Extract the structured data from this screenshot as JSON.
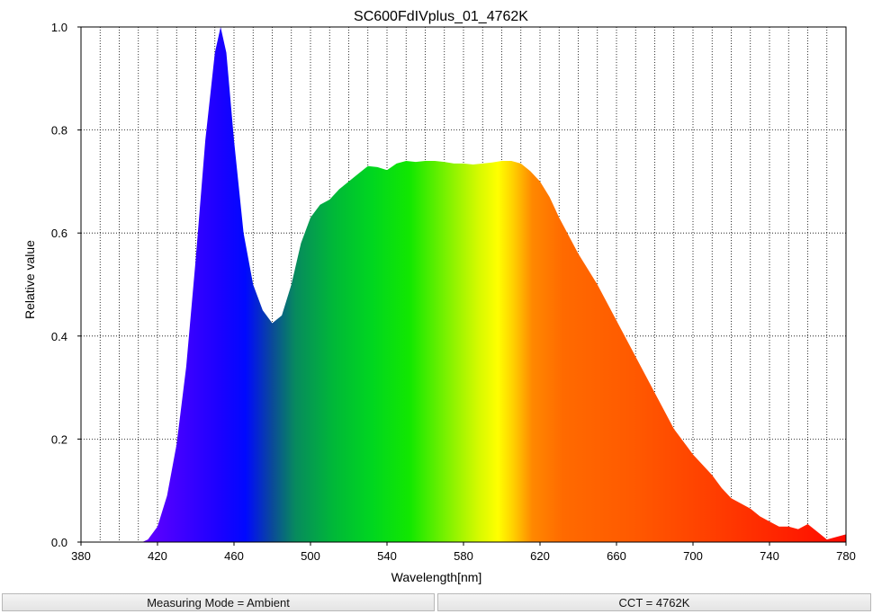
{
  "chart_data": {
    "type": "area",
    "title": "SC600FdIVplus_01_4762K",
    "xlabel": "Wavelength[nm]",
    "ylabel": "Relative value",
    "xlim": [
      380,
      780
    ],
    "ylim": [
      0,
      1.0
    ],
    "x_ticks": [
      380,
      420,
      460,
      500,
      540,
      580,
      620,
      660,
      700,
      740,
      780
    ],
    "x_tick_labels": [
      "380",
      "420",
      "460",
      "500",
      "540",
      "580",
      "620",
      "660",
      "700",
      "740",
      "780"
    ],
    "y_ticks": [
      0,
      0.2,
      0.4,
      0.6,
      0.8,
      1.0
    ],
    "y_tick_labels": [
      "0.0",
      "0.2",
      "0.4",
      "0.6",
      "0.8",
      "1.0"
    ],
    "x_grid_step": 10,
    "grid": true,
    "fill": "spectral-rainbow",
    "x": [
      380,
      412,
      415,
      420,
      425,
      430,
      435,
      440,
      445,
      450,
      453,
      456,
      460,
      465,
      470,
      475,
      480,
      485,
      490,
      495,
      500,
      505,
      510,
      515,
      520,
      525,
      530,
      535,
      540,
      545,
      550,
      555,
      560,
      565,
      570,
      575,
      580,
      585,
      590,
      595,
      600,
      605,
      610,
      615,
      620,
      625,
      630,
      640,
      650,
      660,
      670,
      680,
      690,
      700,
      710,
      715,
      720,
      725,
      730,
      735,
      740,
      745,
      750,
      755,
      760,
      765,
      770,
      775,
      780
    ],
    "y": [
      0,
      0,
      0.005,
      0.03,
      0.09,
      0.19,
      0.34,
      0.55,
      0.78,
      0.95,
      1.0,
      0.95,
      0.78,
      0.6,
      0.5,
      0.45,
      0.425,
      0.44,
      0.5,
      0.58,
      0.63,
      0.655,
      0.665,
      0.685,
      0.7,
      0.715,
      0.73,
      0.728,
      0.722,
      0.735,
      0.74,
      0.738,
      0.74,
      0.74,
      0.738,
      0.735,
      0.735,
      0.733,
      0.735,
      0.737,
      0.74,
      0.74,
      0.735,
      0.72,
      0.7,
      0.67,
      0.63,
      0.56,
      0.5,
      0.43,
      0.36,
      0.29,
      0.22,
      0.17,
      0.13,
      0.105,
      0.085,
      0.075,
      0.065,
      0.05,
      0.04,
      0.03,
      0.03,
      0.025,
      0.035,
      0.02,
      0.005,
      0.01,
      0.015
    ]
  },
  "status_bar": {
    "measuring_mode": "Measuring Mode = Ambient",
    "cct": "CCT = 4762K"
  }
}
